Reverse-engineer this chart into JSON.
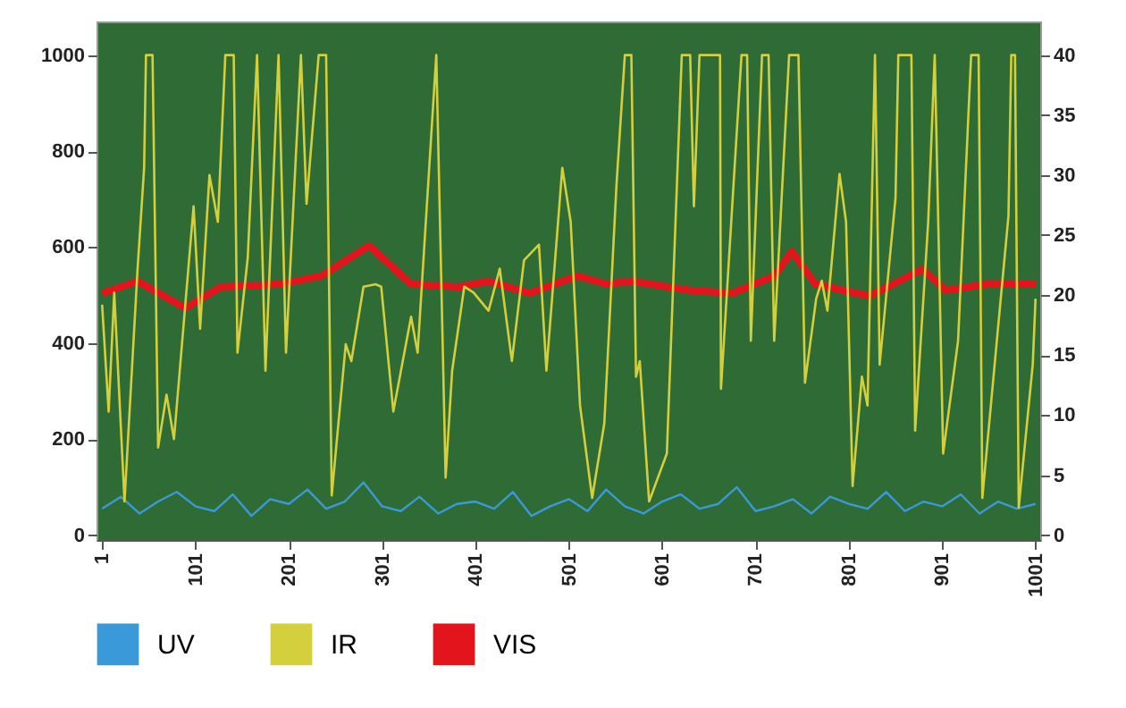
{
  "chart_data": {
    "type": "line",
    "xlim": [
      -5,
      1006
    ],
    "xticks": [
      1,
      101,
      201,
      301,
      401,
      501,
      601,
      701,
      801,
      901,
      1001
    ],
    "ylim": [
      -10,
      1070
    ],
    "yticks": [
      0,
      200,
      400,
      600,
      800,
      1000
    ],
    "y2lim": [
      -0.4,
      42.8
    ],
    "y2ticks": [
      0,
      5,
      10,
      15,
      20,
      25,
      30,
      35,
      40
    ],
    "grid": false,
    "legend": "bottom",
    "series": [
      {
        "name": "UV",
        "color": "#3a9ad9",
        "x": [
          1,
          21,
          41,
          61,
          81,
          101,
          121,
          141,
          161,
          181,
          201,
          221,
          241,
          261,
          281,
          301,
          321,
          341,
          361,
          381,
          401,
          421,
          441,
          461,
          481,
          501,
          521,
          541,
          561,
          581,
          601,
          621,
          641,
          661,
          681,
          701,
          721,
          741,
          761,
          781,
          801,
          821,
          841,
          861,
          881,
          901,
          921,
          941,
          961,
          981,
          1001
        ],
        "values": [
          55,
          80,
          45,
          70,
          90,
          60,
          50,
          85,
          40,
          75,
          65,
          95,
          55,
          70,
          110,
          60,
          50,
          80,
          45,
          65,
          70,
          55,
          90,
          40,
          60,
          75,
          50,
          95,
          60,
          45,
          70,
          85,
          55,
          65,
          100,
          50,
          60,
          75,
          45,
          80,
          65,
          55,
          90,
          50,
          70,
          60,
          85,
          45,
          70,
          55,
          65
        ]
      },
      {
        "name": "IR",
        "color": "#d4cf3c",
        "axis": "y2",
        "x": [
          1,
          8,
          14,
          25,
          39,
          46,
          48,
          55,
          61,
          70,
          78,
          99,
          106,
          116,
          125,
          133,
          142,
          146,
          157,
          167,
          176,
          190,
          198,
          214,
          220,
          233,
          241,
          247,
          262,
          268,
          281,
          294,
          300,
          313,
          332,
          339,
          359,
          369,
          376,
          389,
          399,
          415,
          427,
          440,
          453,
          469,
          477,
          494,
          503,
          513,
          526,
          539,
          552,
          561,
          568,
          573,
          577,
          587,
          606,
          622,
          631,
          635,
          641,
          663,
          664,
          686,
          692,
          696,
          708,
          715,
          721,
          737,
          747,
          754,
          766,
          772,
          778,
          791,
          798,
          805,
          815,
          821,
          829,
          834,
          851,
          854,
          868,
          872,
          886,
          893,
          902,
          918,
          932,
          940,
          944,
          960,
          972,
          975,
          979,
          983,
          998,
          1001
        ],
        "values": [
          19.2,
          10.3,
          20.2,
          2.8,
          22.2,
          30.6,
          40,
          40,
          7.3,
          11.7,
          8,
          27.4,
          17.2,
          30,
          26.1,
          40,
          40,
          15.2,
          23.1,
          40,
          13.7,
          40,
          15.2,
          40,
          27.6,
          40,
          40,
          3.3,
          15.9,
          14.5,
          20.7,
          20.9,
          20.7,
          10.3,
          18.2,
          15.2,
          40,
          4.8,
          13.7,
          20.7,
          20.2,
          18.7,
          22.2,
          14.5,
          22.9,
          24.2,
          13.7,
          30.6,
          26.1,
          10.8,
          3.1,
          9.3,
          29.1,
          40,
          40,
          13.2,
          14.5,
          2.8,
          6.8,
          40,
          40,
          27.4,
          40,
          40,
          12.2,
          40,
          40,
          16.2,
          40,
          40,
          16.2,
          40,
          40,
          12.7,
          19.7,
          21.2,
          18.7,
          30.1,
          26.1,
          4.1,
          13.2,
          10.8,
          40,
          14.2,
          28.1,
          40,
          40,
          8.7,
          26.1,
          40,
          6.8,
          16.2,
          40,
          40,
          3.1,
          16.6,
          26.6,
          40,
          40,
          2.3,
          14.2,
          19.7
        ]
      },
      {
        "name": "VIS",
        "color": "#e3141b",
        "x": [
          1,
          39,
          90,
          128,
          192,
          236,
          287,
          332,
          383,
          415,
          459,
          510,
          542,
          568,
          631,
          676,
          721,
          740,
          765,
          823,
          880,
          905,
          950,
          1001
        ],
        "values": [
          504,
          529,
          473,
          517,
          523,
          540,
          603,
          523,
          517,
          529,
          504,
          540,
          523,
          529,
          510,
          504,
          540,
          591,
          523,
          498,
          554,
          510,
          523,
          523
        ]
      }
    ]
  }
}
